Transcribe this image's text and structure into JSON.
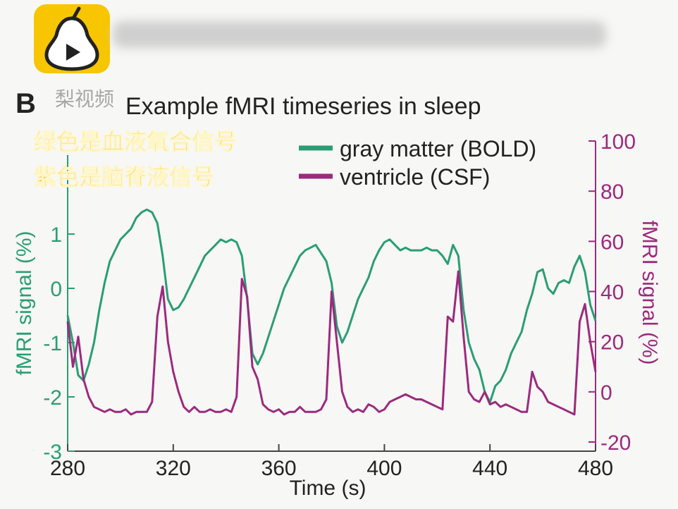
{
  "overlay": {
    "watermark": "梨视频",
    "caption_line1": "绿色是血液氧合信号",
    "caption_line2": "紫色是脑脊液信号"
  },
  "icons": {
    "app_logo": "pear-video-logo-icon",
    "play": "play-icon"
  },
  "chart_data": {
    "type": "line",
    "panel_label": "B",
    "title": "Example fMRI timeseries in sleep",
    "xlabel": "Time (s)",
    "ylabel_left": "fMRI signal (%)",
    "ylabel_right": "fMRI signal (%)",
    "xlim": [
      280,
      480
    ],
    "ylim_left": [
      -3,
      2
    ],
    "ylim_right": [
      -20,
      100
    ],
    "xticks": [
      280,
      320,
      360,
      400,
      440,
      480
    ],
    "yticks_left": [
      -3,
      -2,
      -1,
      0,
      1
    ],
    "yticks_right": [
      -20,
      0,
      20,
      40,
      60,
      80,
      100
    ],
    "legend_placement": "top",
    "grid": false,
    "series": [
      {
        "name": "gray matter (BOLD)",
        "color": "#2a9d74",
        "axis": "left",
        "x": [
          280,
          282,
          284,
          286,
          288,
          290,
          292,
          294,
          296,
          298,
          300,
          302,
          304,
          306,
          308,
          310,
          312,
          314,
          316,
          318,
          320,
          322,
          324,
          326,
          328,
          330,
          332,
          334,
          336,
          338,
          340,
          342,
          344,
          346,
          348,
          350,
          352,
          354,
          356,
          358,
          360,
          362,
          364,
          366,
          368,
          370,
          372,
          374,
          376,
          378,
          380,
          382,
          384,
          386,
          388,
          390,
          392,
          394,
          396,
          398,
          400,
          402,
          404,
          406,
          408,
          410,
          412,
          414,
          416,
          418,
          420,
          422,
          424,
          426,
          428,
          430,
          432,
          434,
          436,
          438,
          440,
          442,
          444,
          446,
          448,
          450,
          452,
          454,
          456,
          458,
          460,
          462,
          464,
          466,
          468,
          470,
          472,
          474,
          476,
          478,
          480
        ],
        "y": [
          -0.5,
          -1.0,
          -1.6,
          -1.7,
          -1.4,
          -1.0,
          -0.4,
          0.1,
          0.5,
          0.7,
          0.9,
          1.0,
          1.1,
          1.3,
          1.4,
          1.45,
          1.4,
          1.2,
          0.6,
          -0.2,
          -0.4,
          -0.35,
          -0.2,
          0.0,
          0.2,
          0.4,
          0.6,
          0.7,
          0.8,
          0.9,
          0.85,
          0.9,
          0.85,
          0.6,
          -0.2,
          -1.2,
          -1.4,
          -1.2,
          -0.9,
          -0.6,
          -0.3,
          0.0,
          0.2,
          0.4,
          0.6,
          0.7,
          0.75,
          0.8,
          0.65,
          0.5,
          0.1,
          -0.7,
          -1.0,
          -0.8,
          -0.5,
          -0.2,
          0.0,
          0.2,
          0.5,
          0.7,
          0.85,
          0.9,
          0.8,
          0.7,
          0.75,
          0.7,
          0.7,
          0.7,
          0.75,
          0.7,
          0.7,
          0.6,
          0.45,
          0.8,
          0.6,
          -0.4,
          -1.0,
          -1.3,
          -1.5,
          -1.9,
          -2.1,
          -1.8,
          -1.7,
          -1.5,
          -1.2,
          -1.0,
          -0.8,
          -0.4,
          -0.1,
          0.3,
          0.35,
          0.0,
          -0.1,
          0.1,
          0.15,
          0.1,
          0.4,
          0.6,
          0.3,
          -0.3,
          -0.6
        ]
      },
      {
        "name": "ventricle (CSF)",
        "color": "#9b2a7e",
        "axis": "right",
        "x": [
          280,
          282,
          284,
          286,
          288,
          290,
          292,
          294,
          296,
          298,
          300,
          302,
          304,
          306,
          308,
          310,
          312,
          314,
          316,
          318,
          320,
          322,
          324,
          326,
          328,
          330,
          332,
          334,
          336,
          338,
          340,
          342,
          344,
          346,
          348,
          350,
          352,
          354,
          356,
          358,
          360,
          362,
          364,
          366,
          368,
          370,
          372,
          374,
          376,
          378,
          380,
          382,
          384,
          386,
          388,
          390,
          392,
          394,
          396,
          398,
          400,
          402,
          404,
          406,
          408,
          410,
          412,
          414,
          416,
          418,
          420,
          422,
          424,
          426,
          428,
          430,
          432,
          434,
          436,
          438,
          440,
          442,
          444,
          446,
          448,
          450,
          452,
          454,
          456,
          458,
          460,
          462,
          464,
          466,
          468,
          470,
          472,
          474,
          476,
          478,
          480
        ],
        "y": [
          28,
          10,
          22,
          5,
          -2,
          -6,
          -7,
          -8,
          -7,
          -8,
          -8,
          -7,
          -9,
          -8,
          -8,
          -8,
          -4,
          30,
          42,
          20,
          8,
          0,
          -6,
          -8,
          -6,
          -8,
          -8,
          -7,
          -8,
          -8,
          -7,
          -8,
          -2,
          45,
          38,
          10,
          5,
          -5,
          -7,
          -8,
          -7,
          -9,
          -8,
          -8,
          -6,
          -8,
          -8,
          -8,
          -7,
          -3,
          40,
          20,
          0,
          -6,
          -8,
          -7,
          -8,
          -5,
          -6,
          -8,
          -7,
          -4,
          -3,
          -2,
          -1,
          -2,
          -3,
          -3,
          -4,
          -5,
          -6,
          -7,
          30,
          28,
          48,
          22,
          0,
          -3,
          -4,
          0,
          -5,
          -4,
          -6,
          -5,
          -6,
          -7,
          -8,
          -8,
          8,
          2,
          0,
          -4,
          -5,
          -6,
          -7,
          -8,
          -9,
          28,
          35,
          20,
          8
        ]
      }
    ]
  }
}
